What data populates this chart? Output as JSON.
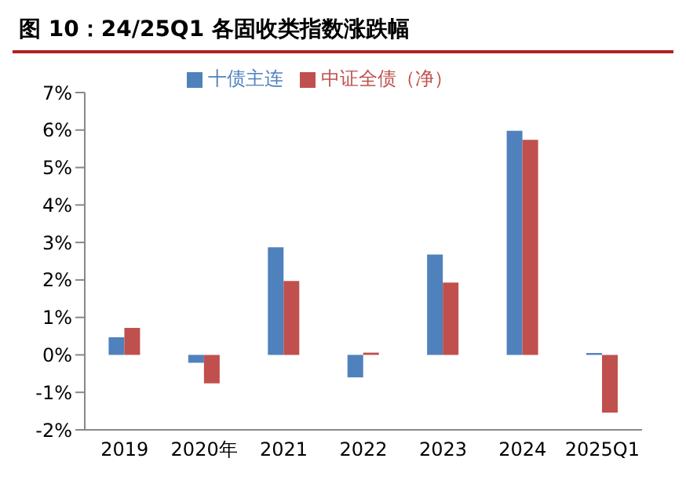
{
  "chart_data": {
    "type": "bar",
    "title": "图 10：24/25Q1 各固收类指数涨跌幅",
    "categories": [
      "2019",
      "2020年",
      "2021",
      "2022",
      "2023",
      "2024",
      "2025Q1"
    ],
    "series": [
      {
        "name": "十债主连",
        "color": "#4f81bd",
        "values": [
          0.47,
          -0.21,
          2.87,
          -0.6,
          2.68,
          5.98,
          0.05
        ]
      },
      {
        "name": "中证全债（净）",
        "color": "#c0504d",
        "values": [
          0.72,
          -0.76,
          1.97,
          0.06,
          1.93,
          5.74,
          -1.54
        ]
      }
    ],
    "ylim": [
      -2,
      7
    ],
    "yticks": [
      {
        "value": -2,
        "label": "-2%"
      },
      {
        "value": -1,
        "label": "-1%"
      },
      {
        "value": 0,
        "label": "0%"
      },
      {
        "value": 1,
        "label": "1%"
      },
      {
        "value": 2,
        "label": "2%"
      },
      {
        "value": 3,
        "label": "3%"
      },
      {
        "value": 4,
        "label": "4%"
      },
      {
        "value": 5,
        "label": "5%"
      },
      {
        "value": 6,
        "label": "6%"
      },
      {
        "value": 7,
        "label": "7%"
      }
    ],
    "grid": false,
    "legend": "top"
  }
}
